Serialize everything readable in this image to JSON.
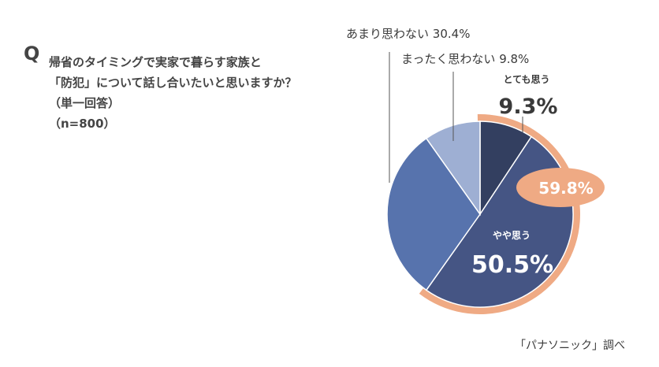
{
  "question": {
    "mark": "Q",
    "line1": "帰省のタイミングで実家で暮らす家族と",
    "line2": "「防犯」について話し合いたいと思いますか？",
    "line3": "（単一回答）",
    "line4": "（n=800）"
  },
  "source": "「パナソニック」調べ",
  "chart_data": {
    "type": "pie",
    "slices": [
      {
        "label": "とても思う",
        "value": 9.3,
        "display": "9.3%",
        "color": "#333f60"
      },
      {
        "label": "やや思う",
        "value": 50.5,
        "display": "50.5%",
        "color": "#455584"
      },
      {
        "label": "あまり思わない",
        "value": 30.4,
        "display": "30.4%",
        "color": "#5773ad"
      },
      {
        "label": "まったく思わない",
        "value": 9.8,
        "display": "9.8%",
        "color": "#9eafd3"
      }
    ],
    "highlight": {
      "value": 59.8,
      "display": "59.8%",
      "color": "#efaa84",
      "covers": [
        "とても思う",
        "やや思う"
      ]
    }
  }
}
